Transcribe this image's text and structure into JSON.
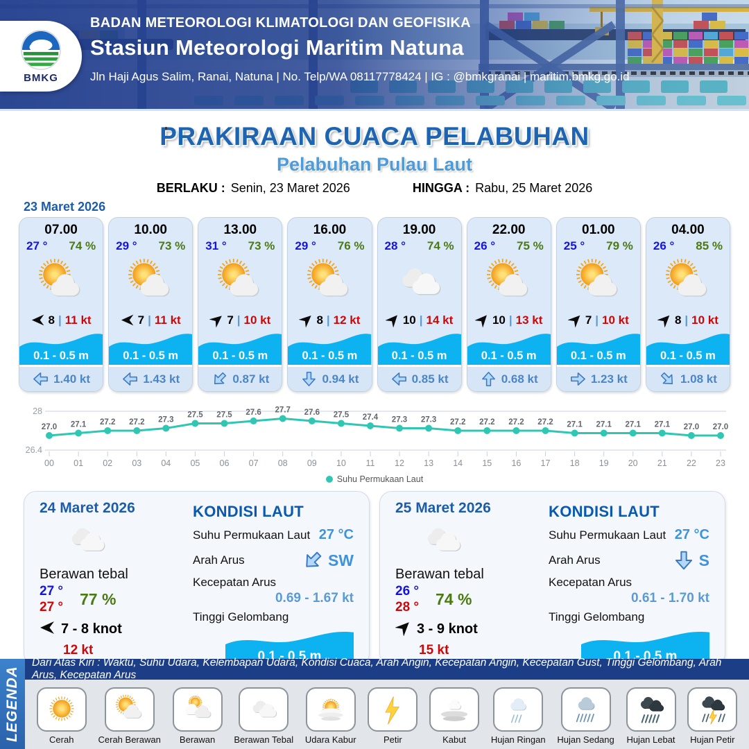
{
  "header": {
    "org": "BADAN METEOROLOGI KLIMATOLOGI DAN GEOFISIKA",
    "station": "Stasiun Meteorologi Maritim Natuna",
    "address": "Jln Haji Agus Salim, Ranai, Natuna  | No. Telp/WA 08117778424 | IG : @bmkgranai | maritim.bmkg.go.id",
    "logo_label": "BMKG"
  },
  "title": {
    "main": "PRAKIRAAN CUACA PELABUHAN",
    "subtitle": "Pelabuhan Pulau Laut",
    "valid_from_label": "BERLAKU :",
    "valid_from": "Senin, 23 Maret 2026",
    "valid_to_label": "HINGGA :",
    "valid_to": "Rabu, 25 Maret 2026"
  },
  "hourly": {
    "date": "23 Maret 2026",
    "wind_separator": "|",
    "cards": [
      {
        "time": "07.00",
        "temp": "27 °",
        "humidity": "74 %",
        "icon": "cerah-berawan",
        "wind_speed": "8",
        "wind_gust": "11 kt",
        "wind_dir_deg": 180,
        "wave": "0.1 - 0.5 m",
        "current_speed": "1.40 kt",
        "current_dir_deg": 180
      },
      {
        "time": "10.00",
        "temp": "29 °",
        "humidity": "73 %",
        "icon": "cerah-berawan",
        "wind_speed": "7",
        "wind_gust": "11 kt",
        "wind_dir_deg": 180,
        "wave": "0.1 - 0.5 m",
        "current_speed": "1.43 kt",
        "current_dir_deg": 180
      },
      {
        "time": "13.00",
        "temp": "31 °",
        "humidity": "73 %",
        "icon": "cerah-berawan",
        "wind_speed": "7",
        "wind_gust": "10 kt",
        "wind_dir_deg": -40,
        "wave": "0.1 - 0.5 m",
        "current_speed": "0.87 kt",
        "current_dir_deg": 135
      },
      {
        "time": "16.00",
        "temp": "29 °",
        "humidity": "76 %",
        "icon": "cerah-berawan",
        "wind_speed": "8",
        "wind_gust": "12 kt",
        "wind_dir_deg": -42,
        "wave": "0.1 - 0.5 m",
        "current_speed": "0.94 kt",
        "current_dir_deg": 90
      },
      {
        "time": "19.00",
        "temp": "28 °",
        "humidity": "74 %",
        "icon": "berawan-tebal",
        "wind_speed": "10",
        "wind_gust": "14 kt",
        "wind_dir_deg": -48,
        "wave": "0.1 - 0.5 m",
        "current_speed": "0.85 kt",
        "current_dir_deg": 180
      },
      {
        "time": "22.00",
        "temp": "26 °",
        "humidity": "75 %",
        "icon": "cerah-berawan",
        "wind_speed": "10",
        "wind_gust": "13 kt",
        "wind_dir_deg": -48,
        "wave": "0.1 - 0.5 m",
        "current_speed": "0.68 kt",
        "current_dir_deg": 270
      },
      {
        "time": "01.00",
        "temp": "25 °",
        "humidity": "79 %",
        "icon": "cerah-berawan",
        "wind_speed": "7",
        "wind_gust": "10 kt",
        "wind_dir_deg": -45,
        "wave": "0.1 - 0.5 m",
        "current_speed": "1.23 kt",
        "current_dir_deg": 0
      },
      {
        "time": "04.00",
        "temp": "26 °",
        "humidity": "85 %",
        "icon": "cerah-berawan",
        "wind_speed": "8",
        "wind_gust": "10 kt",
        "wind_dir_deg": -45,
        "wave": "0.1 - 0.5 m",
        "current_speed": "1.08 kt",
        "current_dir_deg": 45
      }
    ]
  },
  "chart_data": {
    "type": "line",
    "x": [
      "00",
      "01",
      "02",
      "03",
      "04",
      "05",
      "06",
      "07",
      "08",
      "09",
      "10",
      "11",
      "12",
      "13",
      "14",
      "15",
      "16",
      "17",
      "18",
      "19",
      "20",
      "21",
      "22",
      "23"
    ],
    "series": [
      {
        "name": "Suhu Permukaan Laut",
        "values": [
          27.0,
          27.1,
          27.2,
          27.2,
          27.3,
          27.5,
          27.5,
          27.6,
          27.7,
          27.6,
          27.5,
          27.4,
          27.3,
          27.3,
          27.2,
          27.2,
          27.2,
          27.2,
          27.1,
          27.1,
          27.1,
          27.1,
          27.0,
          27.0
        ]
      }
    ],
    "ylim": [
      26.4,
      28
    ],
    "yticks": [
      26.4,
      28
    ],
    "grid": true,
    "legend_position": "bottom",
    "line_color": "#2fc7b4"
  },
  "daily": [
    {
      "date": "24 Maret 2026",
      "icon": "berawan-tebal",
      "condition": "Berawan tebal",
      "temp_min": "27 °",
      "temp_max": "27 °",
      "humidity": "77 %",
      "wind_range": "7  - 8 knot",
      "wind_dir_deg": 180,
      "gust": "12 kt",
      "sea": {
        "heading": "KONDISI LAUT",
        "sst_label": "Suhu Permukaan Laut",
        "sst": "27 °C",
        "dir_label": "Arah Arus",
        "dir": "SW",
        "dir_deg": 135,
        "speed_label": "Kecepatan Arus",
        "speed": "0.69 - 1.67 kt",
        "wave_label": "Tinggi Gelombang",
        "wave": "0.1 - 0.5 m"
      }
    },
    {
      "date": "25 Maret 2026",
      "icon": "berawan-tebal",
      "condition": "Berawan tebal",
      "temp_min": "26 °",
      "temp_max": "28 °",
      "humidity": "74 %",
      "wind_range": "3  - 9 knot",
      "wind_dir_deg": -45,
      "gust": "15 kt",
      "sea": {
        "heading": "KONDISI LAUT",
        "sst_label": "Suhu Permukaan Laut",
        "sst": "27 °C",
        "dir_label": "Arah Arus",
        "dir": "S",
        "dir_deg": 90,
        "speed_label": "Kecepatan Arus",
        "speed": "0.61 - 1.70 kt",
        "wave_label": "Tinggi Gelombang",
        "wave": "0.1 - 0.5 m"
      }
    }
  ],
  "legend": {
    "title": "LEGENDA",
    "description": "Dari Atas Kiri : Waktu, Suhu Udara, Kelembapan Udara, Kondisi Cuaca, Arah Angin, Kecepatan Angin, Kecepatan Gust, Tinggi Gelombang, Arah Arus, Kecepatan Arus",
    "items": [
      {
        "label": "Cerah",
        "icon": "cerah"
      },
      {
        "label": "Cerah Berawan",
        "icon": "cerah-berawan"
      },
      {
        "label": "Berawan",
        "icon": "berawan"
      },
      {
        "label": "Berawan Tebal",
        "icon": "berawan-tebal"
      },
      {
        "label": "Udara Kabur",
        "icon": "udara-kabur"
      },
      {
        "label": "Petir",
        "icon": "petir"
      },
      {
        "label": "Kabut",
        "icon": "kabut"
      },
      {
        "label": "Hujan Ringan",
        "icon": "hujan-ringan"
      },
      {
        "label": "Hujan Sedang",
        "icon": "hujan-sedang"
      },
      {
        "label": "Hujan Lebat",
        "icon": "hujan-lebat"
      },
      {
        "label": "Hujan Petir",
        "icon": "hujan-petir"
      }
    ]
  },
  "colors": {
    "accent_blue": "#1d64b2",
    "subtitle_blue": "#4e9bda",
    "temp_blue": "#1414e0",
    "humidity_green": "#4c7a12",
    "gust_red": "#cc0707",
    "wave_band_blue": "#0db2f0",
    "current_blue": "#4a86c8",
    "chart_teal": "#2fc7b4",
    "legend_bar_navy": "#1c3e86",
    "legend_side_blue": "#3c82cc"
  }
}
